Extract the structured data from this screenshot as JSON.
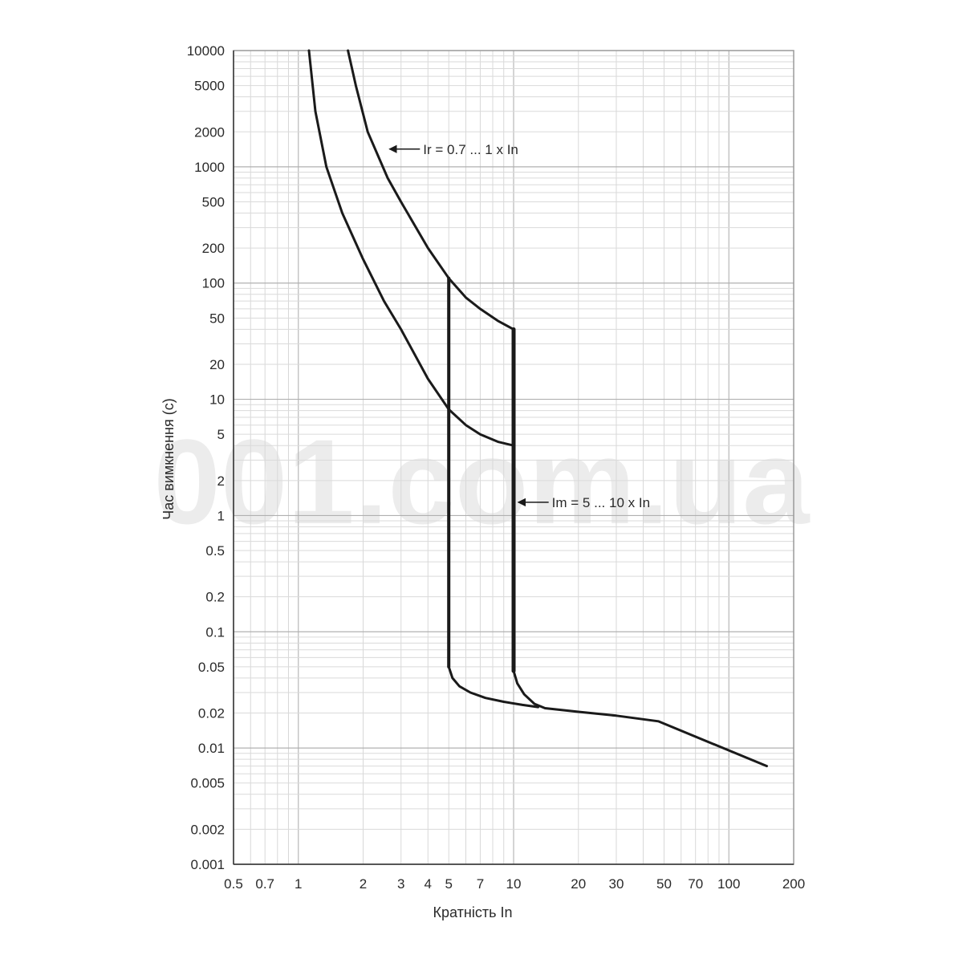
{
  "chart_data": {
    "type": "line",
    "title": "",
    "xlabel": "Кратність In",
    "ylabel": "Час вимкнення (с)",
    "x_scale": "log",
    "y_scale": "log",
    "xlim": [
      0.5,
      200
    ],
    "ylim": [
      0.001,
      10000
    ],
    "grid": true,
    "x_ticks": [
      {
        "value": 0.5,
        "label": "0.5"
      },
      {
        "value": 0.7,
        "label": "0.7"
      },
      {
        "value": 1,
        "label": "1"
      },
      {
        "value": 2,
        "label": "2"
      },
      {
        "value": 3,
        "label": "3"
      },
      {
        "value": 4,
        "label": "4"
      },
      {
        "value": 5,
        "label": "5"
      },
      {
        "value": 7,
        "label": "7"
      },
      {
        "value": 10,
        "label": "10"
      },
      {
        "value": 20,
        "label": "20"
      },
      {
        "value": 30,
        "label": "30"
      },
      {
        "value": 50,
        "label": "50"
      },
      {
        "value": 70,
        "label": "70"
      },
      {
        "value": 100,
        "label": "100"
      },
      {
        "value": 200,
        "label": "200"
      }
    ],
    "y_ticks": [
      {
        "value": 10000,
        "label": "10000"
      },
      {
        "value": 5000,
        "label": "5000"
      },
      {
        "value": 2000,
        "label": "2000"
      },
      {
        "value": 1000,
        "label": "1000"
      },
      {
        "value": 500,
        "label": "500"
      },
      {
        "value": 200,
        "label": "200"
      },
      {
        "value": 100,
        "label": "100"
      },
      {
        "value": 50,
        "label": "50"
      },
      {
        "value": 20,
        "label": "20"
      },
      {
        "value": 10,
        "label": "10"
      },
      {
        "value": 5,
        "label": "5"
      },
      {
        "value": 2,
        "label": "2"
      },
      {
        "value": 1,
        "label": "1"
      },
      {
        "value": 0.5,
        "label": "0.5"
      },
      {
        "value": 0.2,
        "label": "0.2"
      },
      {
        "value": 0.1,
        "label": "0.1"
      },
      {
        "value": 0.05,
        "label": "0.05"
      },
      {
        "value": 0.02,
        "label": "0.02"
      },
      {
        "value": 0.01,
        "label": "0.01"
      },
      {
        "value": 0.005,
        "label": "0.005"
      },
      {
        "value": 0.002,
        "label": "0.002"
      },
      {
        "value": 0.001,
        "label": "0.001"
      }
    ],
    "series": [
      {
        "key": "lower-curve",
        "stroke": "#1a1a1a",
        "points": [
          [
            1.12,
            10000
          ],
          [
            1.2,
            3000
          ],
          [
            1.35,
            1000
          ],
          [
            1.6,
            400
          ],
          [
            2,
            160
          ],
          [
            2.5,
            70
          ],
          [
            3,
            40
          ],
          [
            4,
            15
          ],
          [
            5,
            8.2
          ],
          [
            6,
            6
          ],
          [
            7,
            5
          ],
          [
            8.5,
            4.3
          ],
          [
            10,
            4
          ]
        ]
      },
      {
        "key": "upper-curve",
        "stroke": "#1a1a1a",
        "points": [
          [
            1.7,
            10000
          ],
          [
            1.85,
            5000
          ],
          [
            2.1,
            2000
          ],
          [
            2.6,
            800
          ],
          [
            3,
            500
          ],
          [
            4,
            200
          ],
          [
            5,
            110
          ],
          [
            6,
            75
          ],
          [
            7,
            60
          ],
          [
            8.5,
            47
          ],
          [
            10,
            40
          ]
        ]
      },
      {
        "key": "trip-5-vertical",
        "stroke": "#1a1a1a",
        "points": [
          [
            5,
            110
          ],
          [
            5,
            0.05
          ]
        ]
      },
      {
        "key": "trip-10-vertical",
        "stroke": "#1a1a1a",
        "points": [
          [
            10,
            40
          ],
          [
            10,
            0.046
          ]
        ]
      },
      {
        "key": "instantaneous-5",
        "stroke": "#1a1a1a",
        "points": [
          [
            5,
            0.05
          ],
          [
            5.2,
            0.04
          ],
          [
            5.6,
            0.034
          ],
          [
            6.3,
            0.03
          ],
          [
            7.4,
            0.027
          ],
          [
            9,
            0.025
          ],
          [
            11,
            0.0235
          ],
          [
            13,
            0.0225
          ]
        ]
      },
      {
        "key": "instantaneous-10",
        "stroke": "#1a1a1a",
        "points": [
          [
            10,
            0.046
          ],
          [
            10.4,
            0.036
          ],
          [
            11.2,
            0.029
          ],
          [
            12.5,
            0.024
          ],
          [
            14,
            0.022
          ],
          [
            20,
            0.0205
          ],
          [
            30,
            0.019
          ],
          [
            47,
            0.017
          ],
          [
            150,
            0.007
          ]
        ]
      }
    ],
    "annotations": [
      {
        "key": "ir",
        "text": "Ir = 0.7 ... 1 x In",
        "arrow_to": [
          2.65,
          1420
        ]
      },
      {
        "key": "im",
        "text": "Im = 5 ... 10 x In",
        "arrow_to": [
          10.5,
          1.3
        ]
      }
    ],
    "watermark": "001.com.ua"
  }
}
